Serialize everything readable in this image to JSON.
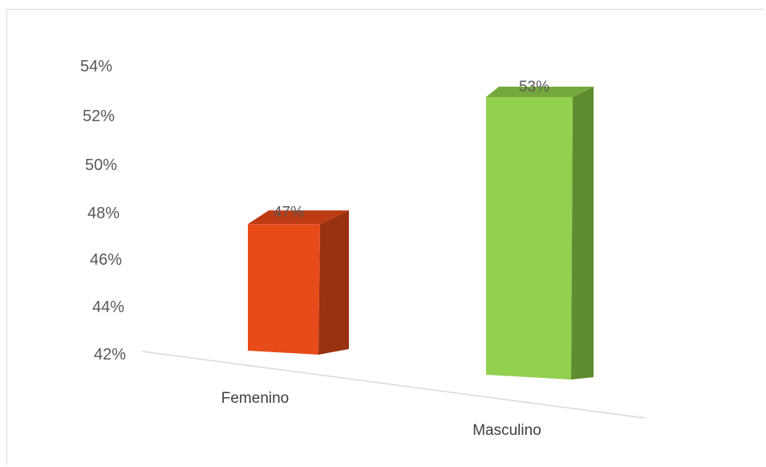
{
  "chart_data": {
    "type": "bar",
    "categories": [
      "Femenino",
      "Masculino"
    ],
    "values": [
      47,
      53
    ],
    "data_labels": [
      "47%",
      "53%"
    ],
    "y_ticks": [
      "42%",
      "44%",
      "46%",
      "48%",
      "50%",
      "52%",
      "54%"
    ],
    "ylim": [
      42,
      54
    ],
    "grid": false,
    "legend": "none",
    "colors": {
      "Femenino": {
        "front": "#e84b1a",
        "side": "#993010",
        "top": "#bd3a12"
      },
      "Masculino": {
        "front": "#92d050",
        "side": "#5e8c2e",
        "top": "#74a83c"
      }
    }
  }
}
